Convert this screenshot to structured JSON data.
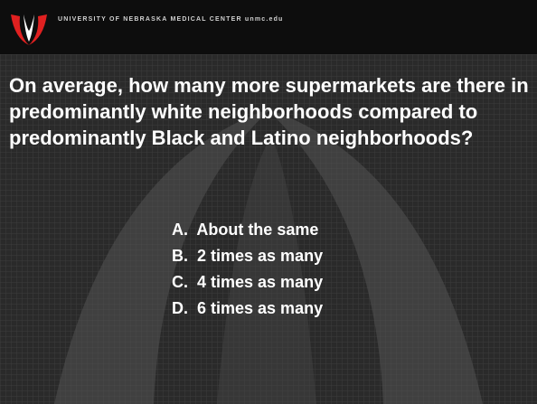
{
  "header": {
    "title": "UNIVERSITY OF NEBRASKA MEDICAL CENTER unmc.edu"
  },
  "question": "On average, how many more supermarkets are there in predominantly white neighborhoods compared to predominantly Black and Latino neighborhoods?",
  "options": [
    "A.  About the same",
    "B.  2 times as many",
    "C.  4 times as many",
    "D.  6 times as many"
  ]
}
